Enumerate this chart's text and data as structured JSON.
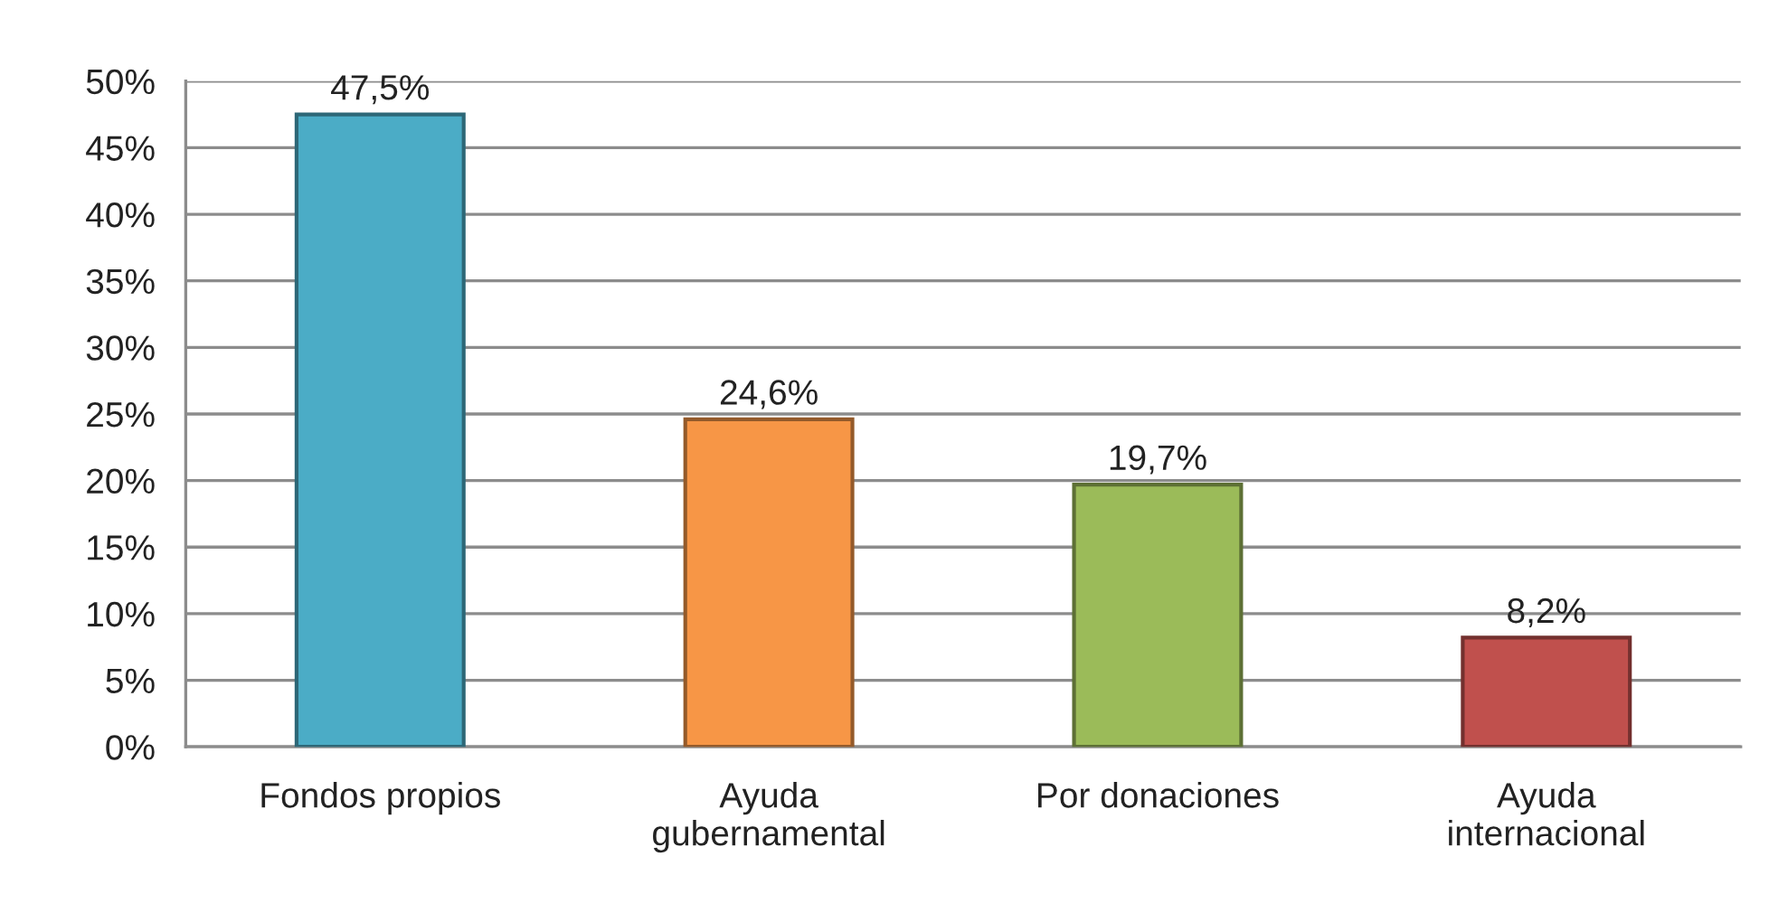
{
  "chart_data": {
    "type": "bar",
    "categories": [
      "Fondos propios",
      "Ayuda\ngubernamental",
      "Por donaciones",
      "Ayuda\ninternacional"
    ],
    "values": [
      47.5,
      24.6,
      19.7,
      8.2
    ],
    "colors": [
      "#4bacc6",
      "#f79646",
      "#9bbb59",
      "#c0504d"
    ],
    "value_labels": [
      "47,5%",
      "24,6%",
      "19,7%",
      "8,2%"
    ],
    "ylim": [
      0,
      50
    ],
    "yticks": [
      {
        "value": 0,
        "label": "0%"
      },
      {
        "value": 5,
        "label": "5%"
      },
      {
        "value": 10,
        "label": "10%"
      },
      {
        "value": 15,
        "label": "15%"
      },
      {
        "value": 20,
        "label": "20%"
      },
      {
        "value": 25,
        "label": "25%"
      },
      {
        "value": 30,
        "label": "30%"
      },
      {
        "value": 35,
        "label": "35%"
      },
      {
        "value": 40,
        "label": "40%"
      },
      {
        "value": 45,
        "label": "45%"
      },
      {
        "value": 50,
        "label": "50%"
      }
    ],
    "grid": "y"
  }
}
